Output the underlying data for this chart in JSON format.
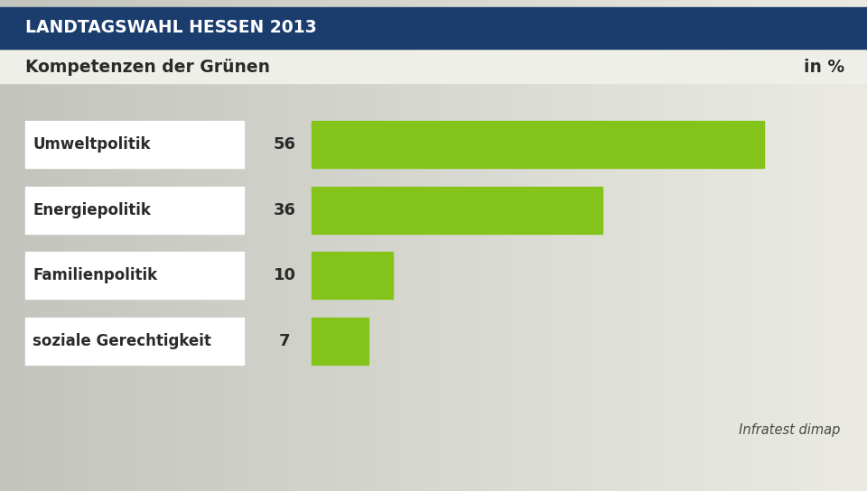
{
  "title_banner": "LANDTAGSWAHL HESSEN 2013",
  "subtitle": "Kompetenzen der Grünen",
  "unit_label": "in %",
  "source": "Infratest dimap",
  "categories": [
    "Umweltpolitik",
    "Energiepolitik",
    "Familienpolitik",
    "soziale Gerechtigkeit"
  ],
  "values": [
    56,
    36,
    10,
    7
  ],
  "bar_color": "#84c41a",
  "banner_color": "#1b3d6e",
  "banner_text_color": "#ffffff",
  "label_bg_color": "#ffffff",
  "label_text_color": "#2a2a2a",
  "value_text_color": "#2a2a2a",
  "source_text_color": "#4a4a4a",
  "max_bar_value": 62,
  "banner_fontsize": 13.5,
  "subtitle_fontsize": 13.5,
  "category_fontsize": 12,
  "value_fontsize": 13,
  "source_fontsize": 10.5
}
